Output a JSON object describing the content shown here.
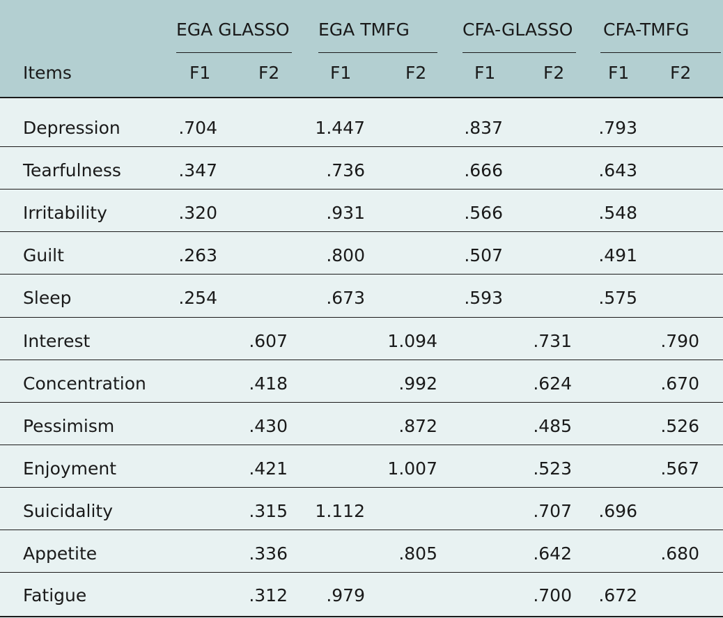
{
  "header": {
    "groups": [
      "EGA GLASSO",
      "EGA TMFG",
      "CFA-GLASSO",
      "CFA-TMFG"
    ],
    "items_label": "Items",
    "subheaders": [
      "F1",
      "F2",
      "F1",
      "F2",
      "F1",
      "F2",
      "F1",
      "F2"
    ]
  },
  "rows": [
    {
      "item": "Depression",
      "values": [
        ".704",
        "",
        "1.447",
        "",
        ".837",
        "",
        ".793",
        ""
      ]
    },
    {
      "item": "Tearfulness",
      "values": [
        ".347",
        "",
        ".736",
        "",
        ".666",
        "",
        ".643",
        ""
      ]
    },
    {
      "item": "Irritability",
      "values": [
        ".320",
        "",
        ".931",
        "",
        ".566",
        "",
        ".548",
        ""
      ]
    },
    {
      "item": "Guilt",
      "values": [
        ".263",
        "",
        ".800",
        "",
        ".507",
        "",
        ".491",
        ""
      ]
    },
    {
      "item": "Sleep",
      "values": [
        ".254",
        "",
        ".673",
        "",
        ".593",
        "",
        ".575",
        ""
      ]
    },
    {
      "item": "Interest",
      "values": [
        "",
        ".607",
        "",
        "1.094",
        "",
        ".731",
        "",
        ".790"
      ]
    },
    {
      "item": "Concentration",
      "values": [
        "",
        ".418",
        "",
        ".992",
        "",
        ".624",
        "",
        ".670"
      ]
    },
    {
      "item": "Pessimism",
      "values": [
        "",
        ".430",
        "",
        ".872",
        "",
        ".485",
        "",
        ".526"
      ]
    },
    {
      "item": "Enjoyment",
      "values": [
        "",
        ".421",
        "",
        "1.007",
        "",
        ".523",
        "",
        ".567"
      ]
    },
    {
      "item": "Suicidality",
      "values": [
        "",
        ".315",
        "1.112",
        "",
        "",
        ".707",
        ".696",
        ""
      ]
    },
    {
      "item": "Appetite",
      "values": [
        "",
        ".336",
        "",
        ".805",
        "",
        ".642",
        "",
        ".680"
      ]
    },
    {
      "item": "Fatigue",
      "values": [
        "",
        ".312",
        ".979",
        "",
        "",
        ".700",
        ".672",
        ""
      ]
    }
  ],
  "colors": {
    "header_bg": "#b3cfd1",
    "body_bg": "#e8f2f2",
    "rule": "#1a1a1a"
  }
}
